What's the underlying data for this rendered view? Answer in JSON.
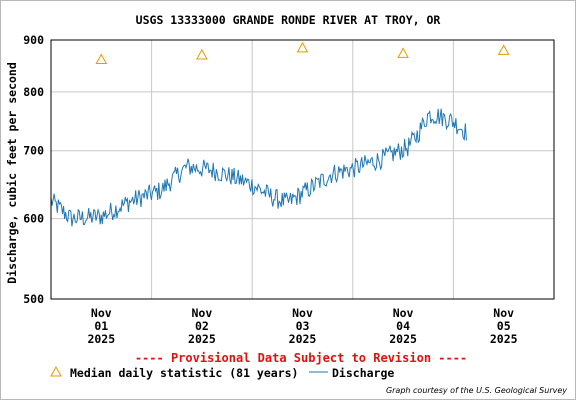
{
  "chart_data": {
    "type": "line",
    "title": "USGS 13333000 GRANDE RONDE RIVER AT TROY, OR",
    "ylabel": "Discharge, cubic feet per second",
    "y_scale": "log",
    "ylim": [
      500,
      900
    ],
    "y_ticks": [
      {
        "value": 900,
        "label": "900"
      },
      {
        "value": 800,
        "label": "800"
      },
      {
        "value": 700,
        "label": "700"
      },
      {
        "value": 600,
        "label": "600"
      },
      {
        "value": 500,
        "label": "500"
      }
    ],
    "x_ticks": [
      {
        "line1": "Nov",
        "line2": "01",
        "line3": "2025",
        "pos": 0.5
      },
      {
        "line1": "Nov",
        "line2": "02",
        "line3": "2025",
        "pos": 1.5
      },
      {
        "line1": "Nov",
        "line2": "03",
        "line3": "2025",
        "pos": 2.5
      },
      {
        "line1": "Nov",
        "line2": "04",
        "line3": "2025",
        "pos": 3.5
      },
      {
        "line1": "Nov",
        "line2": "05",
        "line3": "2025",
        "pos": 4.5
      }
    ],
    "xlim_days": [
      0,
      5
    ],
    "grid": true,
    "provisional_note": "---- Provisional Data Subject to Revision ----",
    "legend": [
      {
        "name": "Median daily statistic (81 years)",
        "marker": "triangle",
        "color": "#e69a00"
      },
      {
        "name": "Discharge",
        "marker": "line",
        "color": "#1f77b4"
      }
    ],
    "credit": "Graph courtesy of the U.S. Geological Survey",
    "series": [
      {
        "name": "Median daily statistic (81 years)",
        "kind": "markers",
        "color": "#e69a00",
        "points": [
          {
            "day": 0.5,
            "value": 861
          },
          {
            "day": 1.5,
            "value": 870
          },
          {
            "day": 2.5,
            "value": 884
          },
          {
            "day": 3.5,
            "value": 873
          },
          {
            "day": 4.5,
            "value": 879
          }
        ]
      },
      {
        "name": "Discharge",
        "kind": "line",
        "color": "#1f77b4",
        "knots": [
          {
            "day": 0.0,
            "value": 625
          },
          {
            "day": 0.2,
            "value": 600
          },
          {
            "day": 0.5,
            "value": 603
          },
          {
            "day": 0.8,
            "value": 625
          },
          {
            "day": 1.1,
            "value": 640
          },
          {
            "day": 1.2,
            "value": 655
          },
          {
            "day": 1.35,
            "value": 675
          },
          {
            "day": 1.6,
            "value": 670
          },
          {
            "day": 1.8,
            "value": 660
          },
          {
            "day": 2.0,
            "value": 648
          },
          {
            "day": 2.2,
            "value": 630
          },
          {
            "day": 2.35,
            "value": 622
          },
          {
            "day": 2.6,
            "value": 645
          },
          {
            "day": 2.8,
            "value": 665
          },
          {
            "day": 3.0,
            "value": 672
          },
          {
            "day": 3.3,
            "value": 688
          },
          {
            "day": 3.55,
            "value": 706
          },
          {
            "day": 3.65,
            "value": 728
          },
          {
            "day": 3.75,
            "value": 760
          },
          {
            "day": 3.85,
            "value": 758
          },
          {
            "day": 4.0,
            "value": 748
          },
          {
            "day": 4.15,
            "value": 732
          },
          {
            "day": 4.13,
            "value": 730
          }
        ],
        "end_day": 4.13
      }
    ]
  }
}
